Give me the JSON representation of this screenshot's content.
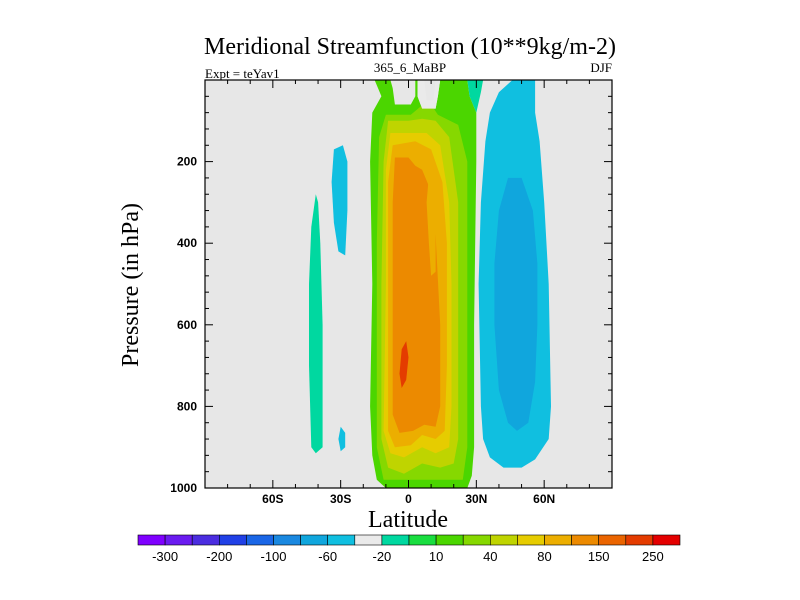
{
  "chart_data": {
    "type": "heatmap",
    "title": "Meridional Streamfunction (10**9kg/m-2)",
    "left_label": "Expt = teYav1",
    "center_label": "365_6_MaBP",
    "right_label": "DJF",
    "xlabel": "Latitude",
    "ylabel": "Pressure (in hPa)",
    "xlim": [
      -90,
      90
    ],
    "ylim": [
      1000,
      0
    ],
    "x_ticks": [
      {
        "value": -60,
        "label": "60S"
      },
      {
        "value": -30,
        "label": "30S"
      },
      {
        "value": 0,
        "label": "0"
      },
      {
        "value": 30,
        "label": "30N"
      },
      {
        "value": 60,
        "label": "60N"
      }
    ],
    "y_ticks": [
      {
        "value": 200,
        "label": "200"
      },
      {
        "value": 400,
        "label": "400"
      },
      {
        "value": 600,
        "label": "600"
      },
      {
        "value": 800,
        "label": "800"
      },
      {
        "value": 1000,
        "label": "1000"
      }
    ],
    "colorbar_labels": [
      "-300",
      "-200",
      "-100",
      "-60",
      "-20",
      "10",
      "40",
      "80",
      "150",
      "250"
    ],
    "colorbar_colors": [
      "#7f00ff",
      "#6a1bf0",
      "#4b2de0",
      "#2040e6",
      "#1a66e6",
      "#1a88e0",
      "#10a6dd",
      "#10bfe0",
      "#eaeaea",
      "#00d8a0",
      "#19de40",
      "#4bd600",
      "#86d800",
      "#bfd400",
      "#e6cc00",
      "#ecae00",
      "#ec8a00",
      "#ea6400",
      "#e43c00",
      "#e40000"
    ],
    "background_color": "#e7e7e7",
    "regions": [
      {
        "name": "tropical-cell-outer",
        "color_index": 11,
        "poly": [
          [
            -15,
            0
          ],
          [
            -12,
            40
          ],
          [
            -16,
            80
          ],
          [
            -17,
            200
          ],
          [
            -16,
            500
          ],
          [
            -17,
            800
          ],
          [
            -16,
            920
          ],
          [
            -14,
            980
          ],
          [
            -10,
            1000
          ],
          [
            26,
            1000
          ],
          [
            28,
            970
          ],
          [
            29,
            900
          ],
          [
            29,
            800
          ],
          [
            29,
            600
          ],
          [
            30,
            200
          ],
          [
            30,
            80
          ],
          [
            27,
            40
          ],
          [
            26,
            0
          ],
          [
            14,
            0
          ],
          [
            13,
            40
          ],
          [
            12,
            70
          ],
          [
            6,
            70
          ],
          [
            4,
            40
          ],
          [
            4,
            0
          ],
          [
            3,
            0
          ],
          [
            3,
            40
          ],
          [
            1,
            60
          ],
          [
            -6,
            60
          ],
          [
            -7,
            20
          ],
          [
            -8,
            0
          ]
        ]
      },
      {
        "name": "tropical-cell-40-a",
        "color_index": 12,
        "poly": [
          [
            -10,
            85
          ],
          [
            -13,
            140
          ],
          [
            -14,
            400
          ],
          [
            -14,
            900
          ],
          [
            -11,
            980
          ],
          [
            24,
            980
          ],
          [
            26,
            900
          ],
          [
            26,
            600
          ],
          [
            26,
            200
          ],
          [
            22,
            110
          ],
          [
            13,
            85
          ],
          [
            10,
            60
          ],
          [
            6,
            62
          ],
          [
            1,
            85
          ]
        ]
      },
      {
        "name": "tropical-cell-80",
        "color_index": 13,
        "poly": [
          [
            -9,
            100
          ],
          [
            -11,
            200
          ],
          [
            -12,
            500
          ],
          [
            -12,
            880
          ],
          [
            -9,
            950
          ],
          [
            -2,
            965
          ],
          [
            6,
            940
          ],
          [
            14,
            950
          ],
          [
            20,
            940
          ],
          [
            22,
            880
          ],
          [
            22,
            600
          ],
          [
            22,
            300
          ],
          [
            18,
            140
          ],
          [
            12,
            100
          ],
          [
            6,
            95
          ],
          [
            0,
            100
          ]
        ]
      },
      {
        "name": "tropical-cell-150-outer",
        "color_index": 14,
        "poly": [
          [
            -8,
            130
          ],
          [
            -10,
            220
          ],
          [
            -10,
            500
          ],
          [
            -11,
            860
          ],
          [
            -8,
            915
          ],
          [
            -2,
            925
          ],
          [
            6,
            900
          ],
          [
            12,
            915
          ],
          [
            18,
            900
          ],
          [
            19,
            800
          ],
          [
            19,
            500
          ],
          [
            18,
            300
          ],
          [
            14,
            160
          ],
          [
            8,
            130
          ],
          [
            0,
            130
          ]
        ]
      },
      {
        "name": "tropical-cell-150",
        "color_index": 15,
        "poly": [
          [
            -7,
            160
          ],
          [
            -9,
            250
          ],
          [
            -9,
            500
          ],
          [
            -9,
            860
          ],
          [
            -6,
            900
          ],
          [
            1,
            895
          ],
          [
            6,
            870
          ],
          [
            12,
            880
          ],
          [
            16,
            860
          ],
          [
            17,
            700
          ],
          [
            17,
            400
          ],
          [
            15,
            250
          ],
          [
            10,
            170
          ],
          [
            3,
            150
          ]
        ]
      },
      {
        "name": "tropical-cell-200",
        "color_index": 16,
        "poly": [
          [
            -6,
            190
          ],
          [
            -7,
            300
          ],
          [
            -7,
            600
          ],
          [
            -7,
            820
          ],
          [
            -4,
            865
          ],
          [
            2,
            860
          ],
          [
            7,
            845
          ],
          [
            12,
            850
          ],
          [
            14,
            800
          ],
          [
            14,
            600
          ],
          [
            12,
            380
          ],
          [
            9,
            260
          ],
          [
            6,
            220
          ],
          [
            3,
            210
          ],
          [
            0,
            190
          ]
        ]
      },
      {
        "name": "tropical-cell-notch",
        "color_index": 15,
        "poly": [
          [
            9,
            235
          ],
          [
            11,
            280
          ],
          [
            12,
            360
          ],
          [
            12,
            470
          ],
          [
            10,
            480
          ],
          [
            9,
            400
          ],
          [
            8,
            300
          ]
        ]
      },
      {
        "name": "tropical-cell-core",
        "color_index": 18,
        "poly": [
          [
            -3,
            660
          ],
          [
            -4,
            720
          ],
          [
            -3,
            755
          ],
          [
            -1,
            735
          ],
          [
            0,
            680
          ],
          [
            -1,
            640
          ]
        ]
      },
      {
        "name": "upper-gap-center",
        "color_index": 8,
        "poly": [
          [
            4,
            0
          ],
          [
            4,
            40
          ],
          [
            6,
            70
          ],
          [
            12,
            70
          ],
          [
            13,
            40
          ],
          [
            14,
            0
          ],
          [
            12,
            0
          ],
          [
            11,
            50
          ],
          [
            8,
            50
          ],
          [
            7,
            0
          ]
        ]
      },
      {
        "name": "nh-cell-outer",
        "color_index": 7,
        "poly": [
          [
            46,
            0
          ],
          [
            40,
            30
          ],
          [
            36,
            80
          ],
          [
            34,
            150
          ],
          [
            32,
            300
          ],
          [
            31,
            500
          ],
          [
            32,
            800
          ],
          [
            33,
            880
          ],
          [
            36,
            925
          ],
          [
            42,
            950
          ],
          [
            50,
            950
          ],
          [
            56,
            930
          ],
          [
            62,
            880
          ],
          [
            63,
            800
          ],
          [
            62,
            500
          ],
          [
            60,
            300
          ],
          [
            58,
            150
          ],
          [
            56,
            80
          ],
          [
            56,
            0
          ]
        ]
      },
      {
        "name": "nh-cell-inner",
        "color_index": 6,
        "poly": [
          [
            44,
            240
          ],
          [
            40,
            320
          ],
          [
            38,
            450
          ],
          [
            38,
            600
          ],
          [
            40,
            760
          ],
          [
            44,
            840
          ],
          [
            48,
            860
          ],
          [
            53,
            840
          ],
          [
            56,
            740
          ],
          [
            57,
            600
          ],
          [
            57,
            450
          ],
          [
            55,
            320
          ],
          [
            50,
            240
          ]
        ]
      },
      {
        "name": "nh-cell-upper-strip",
        "color_index": 9,
        "poly": [
          [
            26,
            0
          ],
          [
            27,
            40
          ],
          [
            30,
            80
          ],
          [
            32,
            30
          ],
          [
            33,
            0
          ]
        ]
      },
      {
        "name": "sh-cell-blue",
        "color_index": 7,
        "poly": [
          [
            -29,
            160
          ],
          [
            -33,
            170
          ],
          [
            -34,
            250
          ],
          [
            -33,
            350
          ],
          [
            -31,
            420
          ],
          [
            -28,
            430
          ],
          [
            -27,
            320
          ],
          [
            -27,
            200
          ]
        ]
      },
      {
        "name": "sh-cell-green",
        "color_index": 9,
        "poly": [
          [
            -41,
            280
          ],
          [
            -43,
            360
          ],
          [
            -44,
            500
          ],
          [
            -44,
            700
          ],
          [
            -43,
            900
          ],
          [
            -41,
            915
          ],
          [
            -38,
            900
          ],
          [
            -38,
            600
          ],
          [
            -39,
            400
          ],
          [
            -40,
            300
          ]
        ]
      },
      {
        "name": "sh-cell-small",
        "color_index": 7,
        "poly": [
          [
            -30,
            850
          ],
          [
            -31,
            880
          ],
          [
            -30,
            910
          ],
          [
            -28,
            900
          ],
          [
            -28,
            865
          ]
        ]
      }
    ]
  }
}
